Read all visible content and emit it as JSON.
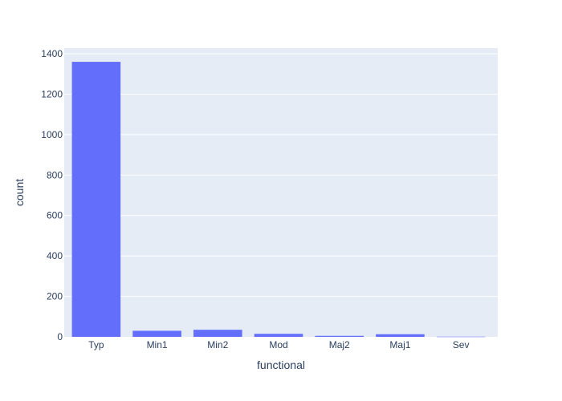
{
  "chart_data": {
    "type": "bar",
    "categories": [
      "Typ",
      "Min1",
      "Min2",
      "Mod",
      "Maj2",
      "Maj1",
      "Sev"
    ],
    "values": [
      1360,
      30,
      35,
      15,
      5,
      13,
      1
    ],
    "xlabel": "functional",
    "ylabel": "count",
    "ylim": [
      0,
      1400
    ],
    "yticks": [
      0,
      200,
      400,
      600,
      800,
      1000,
      1200,
      1400
    ],
    "grid": true,
    "legend": "none",
    "colors": {
      "bar": "#636efa",
      "plot_background": "#e5ecf6",
      "gridline": "#ffffff",
      "text": "#2a3f5f"
    }
  }
}
